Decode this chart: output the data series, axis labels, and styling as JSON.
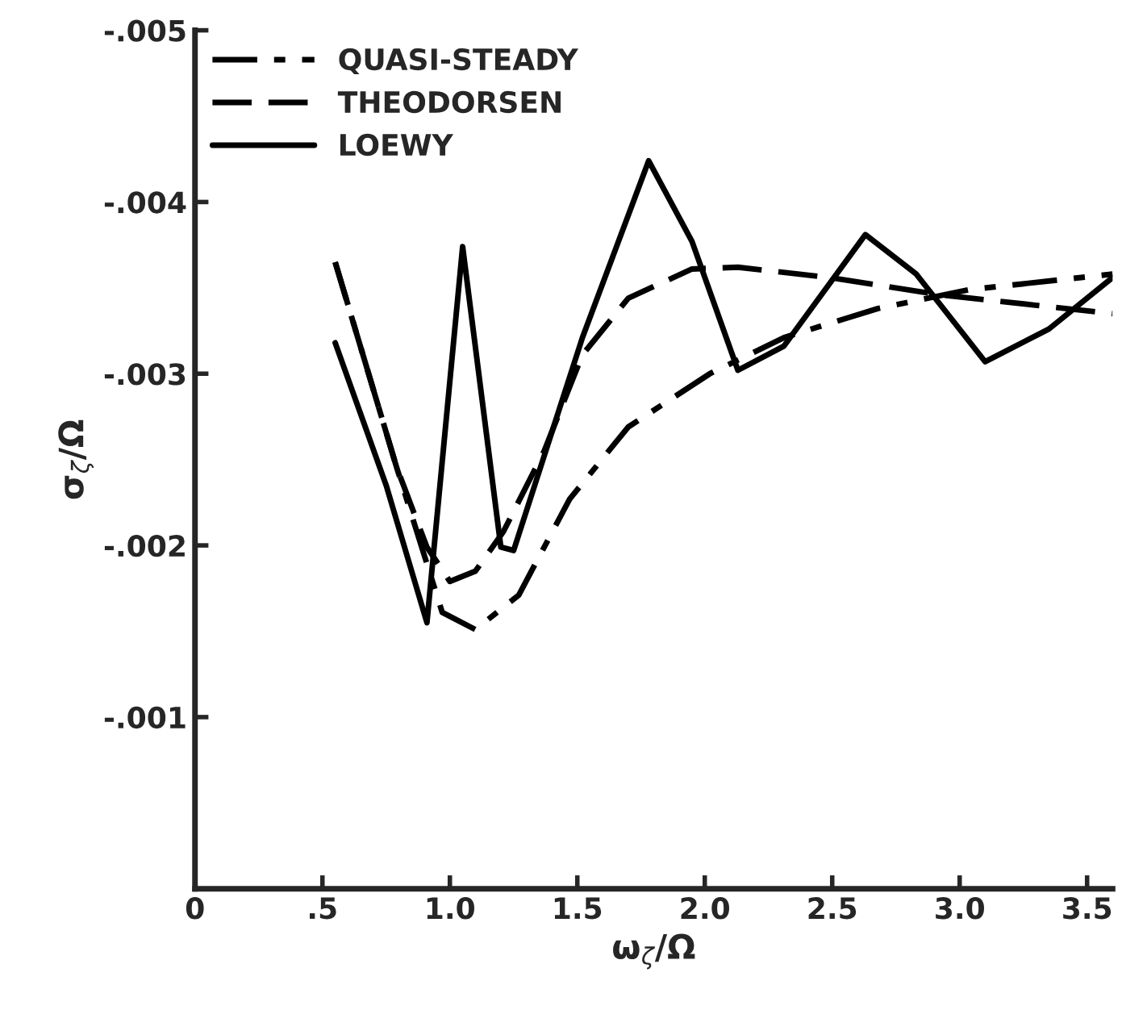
{
  "chart_data": {
    "type": "line",
    "xlabel": "ω$_{ζ}$/Ω",
    "ylabel": "σ$_{ζ}$/Ω",
    "xlim": [
      0,
      3.6
    ],
    "ylim": [
      0,
      -0.005
    ],
    "xticks": [
      0,
      {
        "value": 0.5,
        "label": ".5"
      },
      {
        "value": 1.0,
        "label": "1.0"
      },
      {
        "value": 1.5,
        "label": "1.5"
      },
      {
        "value": 2.0,
        "label": "2.0"
      },
      {
        "value": 2.5,
        "label": "2.5"
      },
      {
        "value": 3.0,
        "label": "3.0"
      },
      {
        "value": 3.5,
        "label": "3.5"
      }
    ],
    "yticks": [
      {
        "value": -0.001,
        "label": "-.001"
      },
      {
        "value": -0.002,
        "label": "-.002"
      },
      {
        "value": -0.003,
        "label": "-.003"
      },
      {
        "value": -0.004,
        "label": "-.004"
      },
      {
        "value": -0.005,
        "label": "-.005"
      }
    ],
    "grid": false,
    "legend": "top left",
    "series": [
      {
        "name": "QUASI-STEADY",
        "color": "#000000",
        "line_style": "dashdot",
        "x": [
          0.55,
          0.79,
          0.97,
          1.1,
          1.27,
          1.47,
          1.7,
          2.02,
          2.31,
          2.68,
          3.04,
          3.6
        ],
        "values": [
          -0.00365,
          -0.00246,
          -0.00161,
          -0.00151,
          -0.00171,
          -0.00227,
          -0.00269,
          -0.003,
          -0.00321,
          -0.00338,
          -0.00349,
          -0.00358
        ]
      },
      {
        "name": "THEODORSEN",
        "color": "#000000",
        "line_style": "dashed",
        "x": [
          0.55,
          0.79,
          0.91,
          1.0,
          1.1,
          1.21,
          1.37,
          1.52,
          1.7,
          1.95,
          2.13,
          2.49,
          2.92,
          3.29,
          3.6
        ],
        "values": [
          -0.00365,
          -0.00246,
          -0.00199,
          -0.00179,
          -0.00185,
          -0.00208,
          -0.00255,
          -0.00311,
          -0.00344,
          -0.00361,
          -0.00362,
          -0.00356,
          -0.00346,
          -0.0034,
          -0.00335
        ]
      },
      {
        "name": "LOEWY",
        "color": "#000000",
        "line_style": "solid",
        "x": [
          0.55,
          0.75,
          0.91,
          1.05,
          1.2,
          1.25,
          1.52,
          1.78,
          1.95,
          2.13,
          2.31,
          2.63,
          2.83,
          3.1,
          3.35,
          3.6
        ],
        "values": [
          -0.00318,
          -0.00235,
          -0.00155,
          -0.00374,
          -0.00199,
          -0.00197,
          -0.00321,
          -0.00424,
          -0.00377,
          -0.00302,
          -0.00316,
          -0.00381,
          -0.00358,
          -0.00307,
          -0.00326,
          -0.00356
        ]
      }
    ]
  }
}
